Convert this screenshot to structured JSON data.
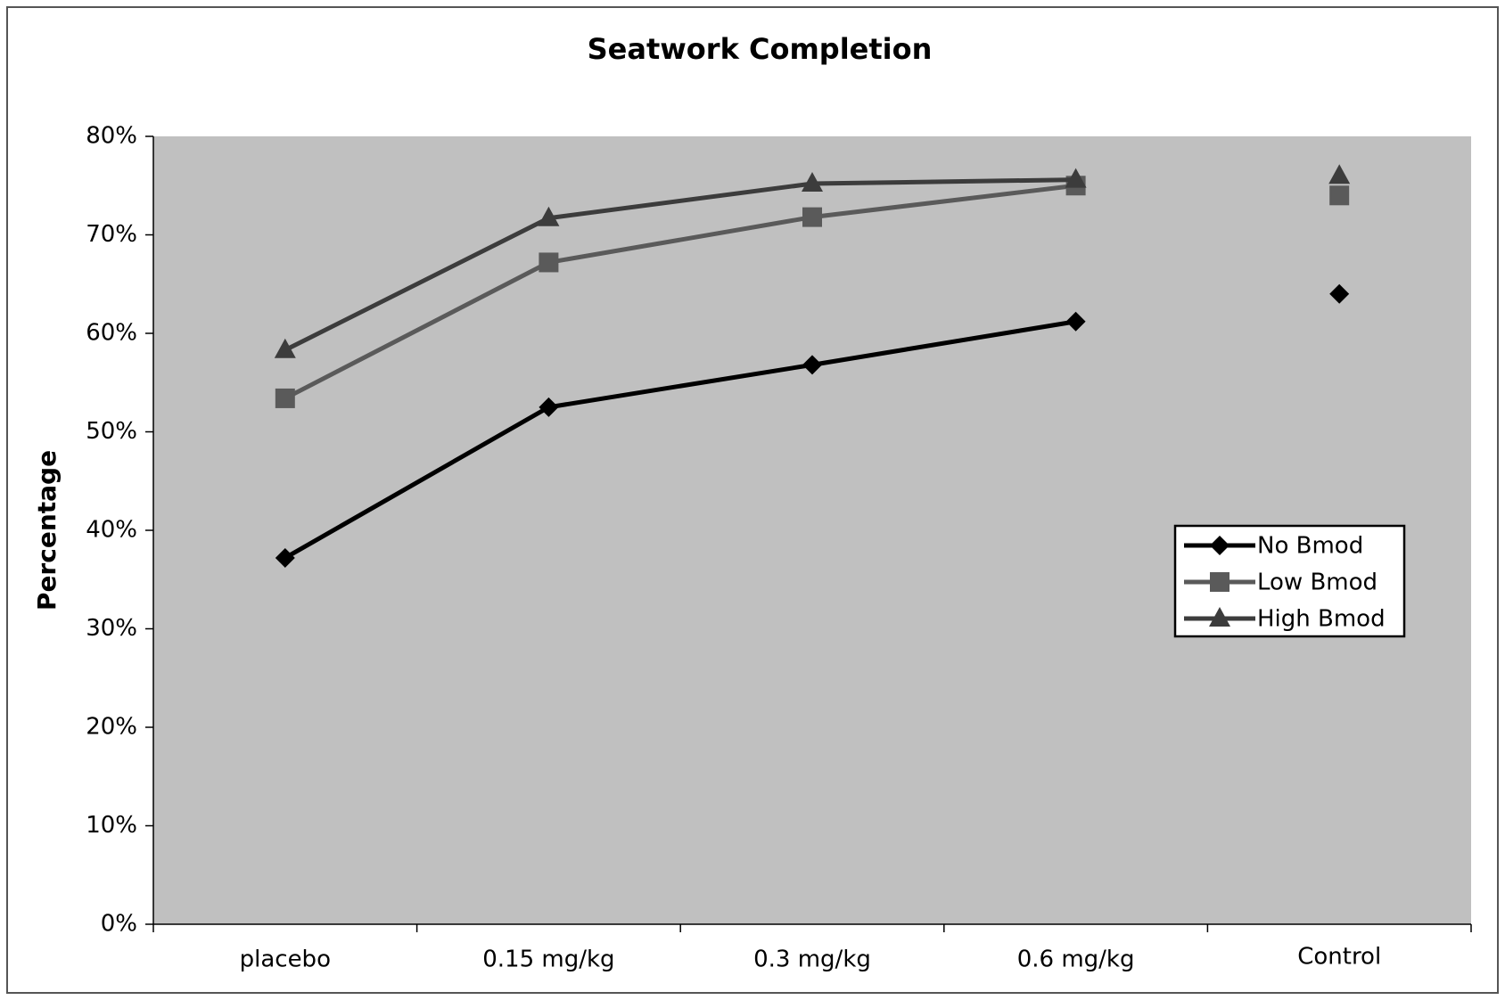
{
  "chart_data": {
    "type": "line",
    "title": "Seatwork Completion",
    "y_label": "Percentage",
    "categories": [
      "placebo",
      "0.15 mg/kg",
      "0.3 mg/kg",
      "0.6 mg/kg"
    ],
    "control_label": "Control",
    "series": [
      {
        "name": "No Bmod",
        "color": "#000000",
        "marker": "diamond",
        "values": [
          37.2,
          52.5,
          56.8,
          61.2
        ],
        "control": 64
      },
      {
        "name": "Low Bmod",
        "color": "#5a5a5a",
        "marker": "square",
        "values": [
          53.4,
          67.2,
          71.8,
          75.0
        ],
        "control": 74
      },
      {
        "name": "High Bmod",
        "color": "#3c3c3c",
        "marker": "triangle",
        "values": [
          58.3,
          71.7,
          75.2,
          75.6
        ],
        "control": 76
      }
    ],
    "ylim": [
      0,
      80
    ],
    "yticks": [
      {
        "value": 0,
        "label": "0%"
      },
      {
        "value": 10,
        "label": "10%"
      },
      {
        "value": 20,
        "label": "20%"
      },
      {
        "value": 30,
        "label": "30%"
      },
      {
        "value": 40,
        "label": "40%"
      },
      {
        "value": 50,
        "label": "50%"
      },
      {
        "value": 60,
        "label": "60%"
      },
      {
        "value": 70,
        "label": "70%"
      },
      {
        "value": 80,
        "label": "80%"
      }
    ],
    "plot_background": "#c0c0c0",
    "legend": "right"
  }
}
